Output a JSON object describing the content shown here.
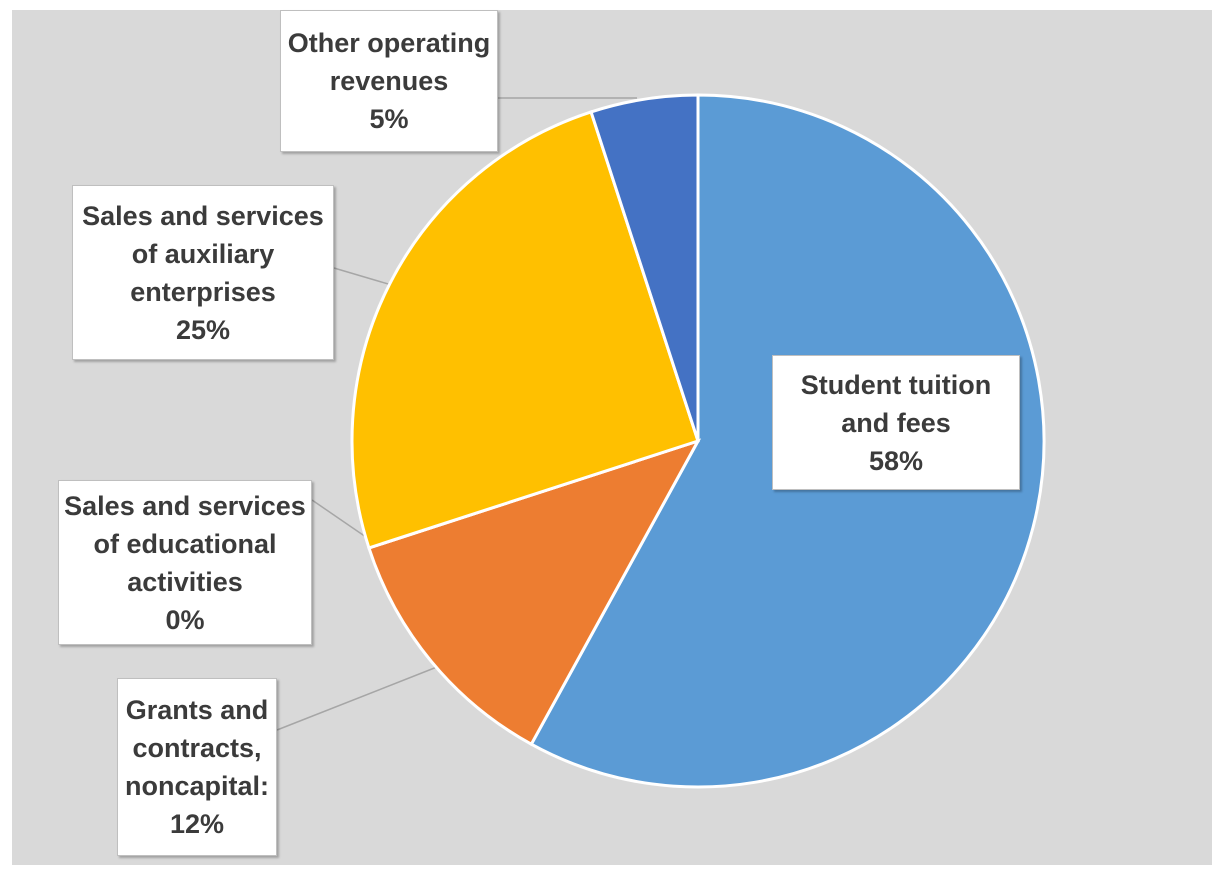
{
  "chart_data": {
    "type": "pie",
    "title": "",
    "start_angle_deg": 0,
    "direction": "clockwise",
    "slices": [
      {
        "name": "Student tuition and fees",
        "label_lines": [
          "Student tuition",
          "and fees"
        ],
        "value": 58,
        "pct_label": "58%",
        "color": "#5b9bd5"
      },
      {
        "name": "Grants and contracts, noncapital:",
        "label_lines": [
          "Grants and",
          "contracts,",
          "noncapital:"
        ],
        "value": 12,
        "pct_label": "12%",
        "color": "#ed7d31"
      },
      {
        "name": "Sales and services of educational activities",
        "label_lines": [
          "Sales and services",
          "of educational",
          "activities"
        ],
        "value": 0,
        "pct_label": "0%",
        "color": "#a5a5a5"
      },
      {
        "name": "Sales and services of auxiliary enterprises",
        "label_lines": [
          "Sales and services",
          "of auxiliary",
          "enterprises"
        ],
        "value": 25,
        "pct_label": "25%",
        "color": "#ffc000"
      },
      {
        "name": "Other operating revenues",
        "label_lines": [
          "Other operating",
          "revenues"
        ],
        "value": 5,
        "pct_label": "5%",
        "color": "#4472c4"
      }
    ],
    "legend": "none",
    "background": "#d9d9d9"
  }
}
